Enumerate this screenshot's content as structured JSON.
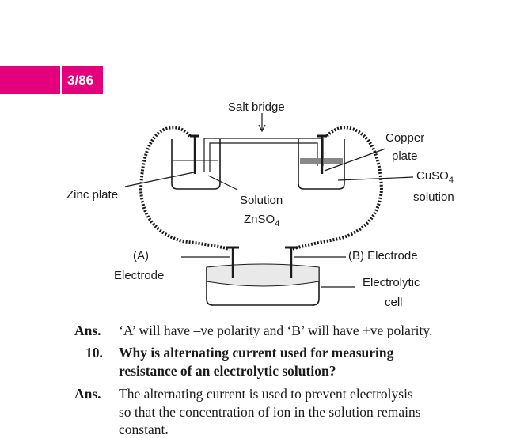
{
  "header": {
    "page_number": "3/86",
    "accent_color": "#e4007c"
  },
  "diagram": {
    "labels": {
      "salt_bridge": "Salt bridge",
      "copper_plate_line1": "Copper",
      "copper_plate_line2": "plate",
      "cuso4_line1": "CuSO",
      "cuso4_sub": "4",
      "cuso4_line2": "solution",
      "zinc_plate": "Zinc plate",
      "solution_line1": "Solution",
      "znso4": "ZnSO",
      "znso4_sub": "4",
      "a_label": "(A)",
      "a_electrode": "Electrode",
      "b_electrode": "(B) Electrode",
      "cell_line1": "Electrolytic",
      "cell_line2": "cell"
    }
  },
  "qa": {
    "ans1_label": "Ans.",
    "ans1_text": "‘A’ will have –ve polarity and ‘B’ will have +ve polarity.",
    "q10_num": "10.",
    "q10_line1": "Why is alternating current used for measuring",
    "q10_line2": "resistance of an electrolytic solution?",
    "ans2_label": "Ans.",
    "ans2_line1": "The alternating current is used to prevent electrolysis",
    "ans2_line2": "so that the concentration of ion in the solution remains",
    "ans2_line3": "constant."
  }
}
